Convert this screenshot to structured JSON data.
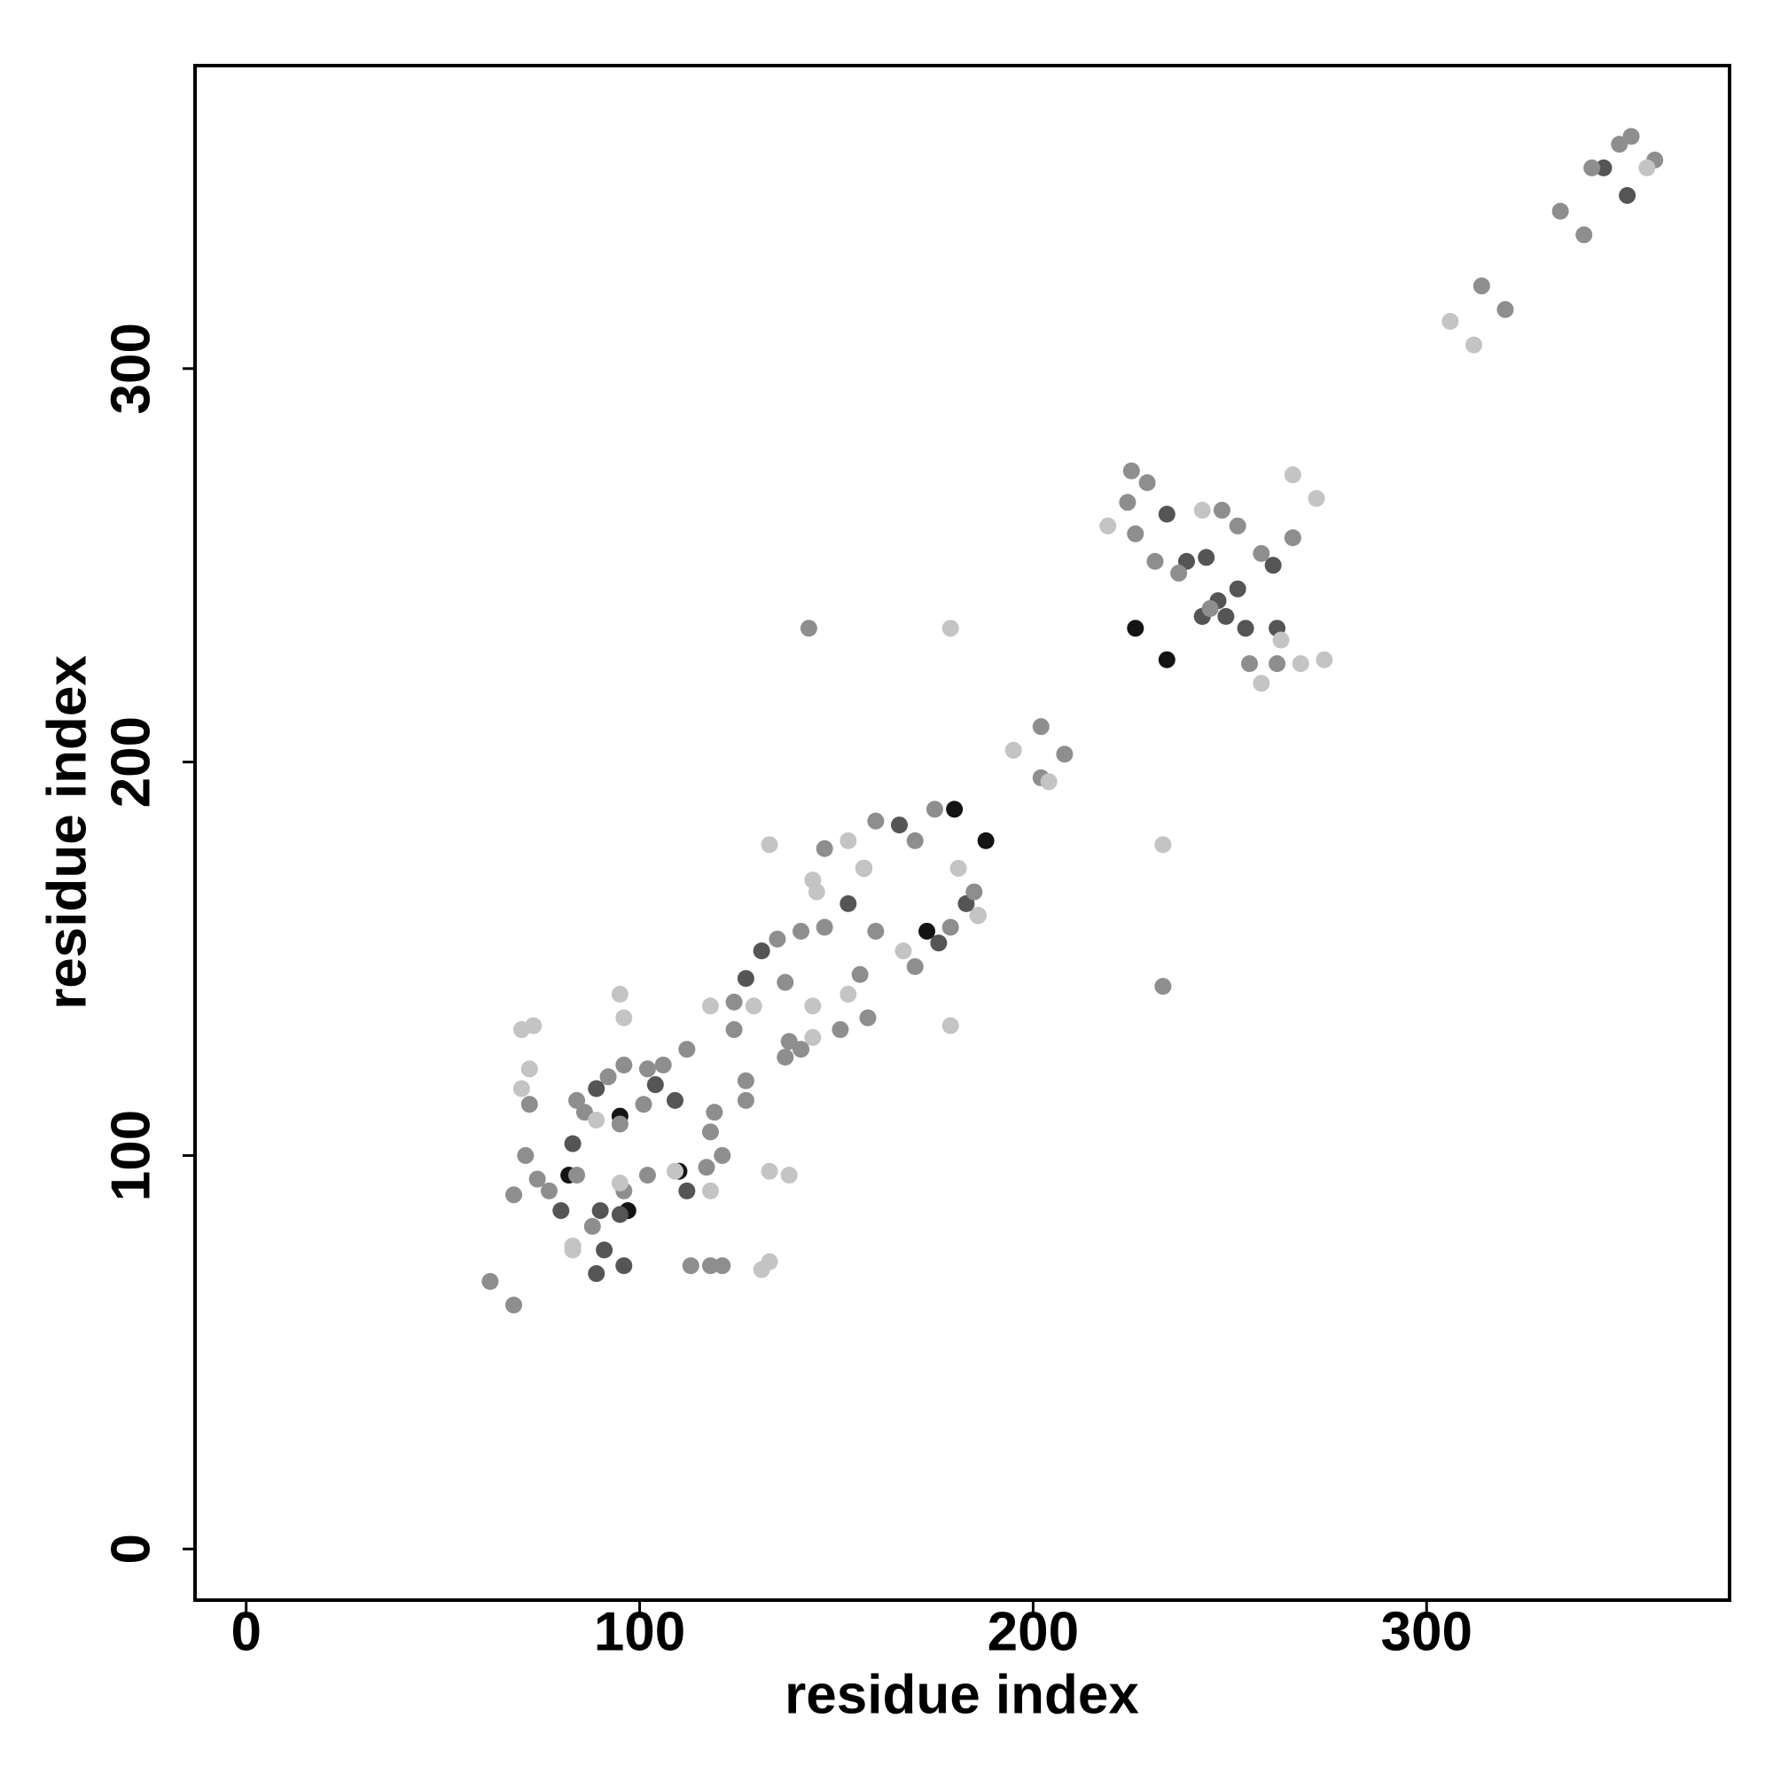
{
  "chart_data": {
    "type": "scatter",
    "xlabel": "residue index",
    "ylabel": "residue index",
    "xlim": [
      -13,
      377
    ],
    "ylim": [
      -13,
      377
    ],
    "xticks": [
      0,
      100,
      200,
      300
    ],
    "yticks": [
      0,
      100,
      200,
      300
    ],
    "series": [
      {
        "color": "#141414",
        "x": [
          180,
          188,
          226,
          234,
          110,
          97,
          95,
          82,
          173,
          157
        ],
        "y": [
          188,
          180,
          234,
          226,
          96,
          86,
          110,
          95,
          157,
          173
        ]
      },
      {
        "color": "#555555",
        "x": [
          345,
          351,
          234,
          239,
          244,
          252,
          247,
          254,
          262,
          261,
          243,
          166,
          183,
          186,
          176,
          153,
          131,
          127,
          89,
          95,
          109,
          112,
          83,
          96,
          91,
          89,
          80,
          90,
          104,
          243,
          249
        ],
        "y": [
          351,
          344,
          263,
          251,
          252,
          244,
          241,
          234,
          234,
          250,
          237,
          184,
          164,
          161,
          154,
          164,
          152,
          145,
          117,
          85,
          114,
          91,
          103,
          72,
          76,
          70,
          86,
          86,
          118,
          237,
          237
        ]
      },
      {
        "color": "#8e8e8e",
        "x": [
          358,
          352,
          349,
          342,
          334,
          340,
          314,
          320,
          225,
          224,
          248,
          252,
          229,
          226,
          231,
          237,
          245,
          258,
          266,
          262,
          255,
          143,
          233,
          202,
          208,
          202,
          175,
          160,
          147,
          170,
          185,
          179,
          170,
          160,
          141,
          147,
          135,
          124,
          137,
          156,
          158,
          151,
          138,
          137,
          141,
          124,
          127,
          112,
          106,
          102,
          96,
          92,
          84,
          86,
          95,
          101,
          119,
          127,
          118,
          121,
          117,
          102,
          71,
          74,
          68,
          77,
          84,
          88,
          62,
          68,
          72,
          118,
          121,
          96,
          113
        ],
        "y": [
          353,
          359,
          357,
          351,
          340,
          334,
          321,
          315,
          274,
          266,
          264,
          260,
          271,
          258,
          251,
          248,
          239,
          253,
          257,
          225,
          225,
          234,
          143,
          209,
          202,
          196,
          188,
          185,
          178,
          180,
          167,
          158,
          148,
          157,
          157,
          158,
          155,
          139,
          144,
          146,
          135,
          132,
          129,
          125,
          127,
          132,
          119,
          127,
          123,
          122,
          123,
          120,
          114,
          111,
          108,
          113,
          111,
          114,
          106,
          100,
          97,
          95,
          100,
          94,
          90,
          91,
          95,
          82,
          68,
          62,
          113,
          72,
          72,
          91,
          72
        ]
      },
      {
        "color": "#c4c4c4",
        "x": [
          356,
          306,
          312,
          219,
          243,
          266,
          272,
          258,
          263,
          268,
          274,
          179,
          233,
          195,
          204,
          153,
          133,
          144,
          157,
          167,
          181,
          186,
          145,
          129,
          118,
          153,
          144,
          89,
          95,
          109,
          83,
          70,
          72,
          70,
          73,
          95,
          96,
          133,
          138,
          131,
          133,
          83,
          118,
          179,
          144
        ],
        "y": [
          351,
          312,
          306,
          260,
          264,
          273,
          267,
          220,
          231,
          225,
          226,
          234,
          179,
          203,
          195,
          180,
          179,
          170,
          173,
          152,
          173,
          161,
          167,
          138,
          138,
          141,
          130,
          109,
          93,
          96,
          77,
          117,
          122,
          132,
          133,
          141,
          135,
          96,
          95,
          71,
          73,
          76,
          91,
          133,
          138
        ]
      }
    ]
  }
}
